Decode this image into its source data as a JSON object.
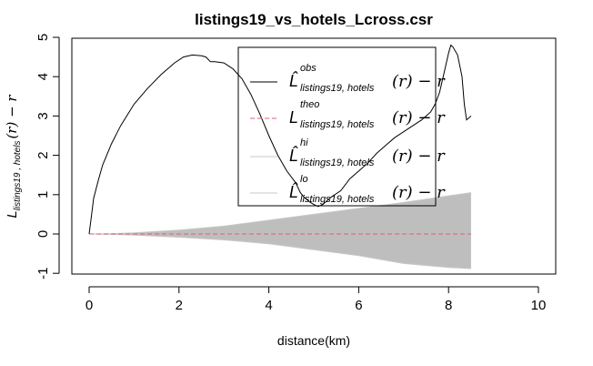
{
  "chart_data": {
    "type": "line",
    "title": "listings19_vs_hotels_Lcross.csr",
    "xlabel": "distance(km)",
    "ylabel": {
      "main": "L",
      "sub": "listings19 , hotels",
      "tail": "(r) − r"
    },
    "xlim": [
      0,
      10
    ],
    "ylim": [
      -1,
      5
    ],
    "xticks": [
      "0",
      "2",
      "4",
      "6",
      "8",
      "10"
    ],
    "yticks": [
      "-1",
      "0",
      "1",
      "2",
      "3",
      "4",
      "5"
    ],
    "grid": false,
    "legend_position": "top-center",
    "colors": {
      "obs": "#000000",
      "theo": "#e06070",
      "envelope": "#bebebe",
      "envelope_line": "#c8c8c8"
    },
    "legend": [
      {
        "main": "L̂",
        "sup": "obs",
        "sub": "listings19, hotels",
        "tail": "(r) − r",
        "style": "solid-black"
      },
      {
        "main": "L",
        "sup": "theo",
        "sub": "listings19, hotels",
        "tail": "(r) − r",
        "style": "dashed-red"
      },
      {
        "main": "L̂",
        "sup": "hi",
        "sub": "listings19, hotels",
        "tail": "(r) − r",
        "style": "solid-grey"
      },
      {
        "main": "L̂",
        "sup": "lo",
        "sub": "listings19, hotels",
        "tail": "(r) − r",
        "style": "solid-grey"
      }
    ],
    "series": [
      {
        "name": "obs",
        "x": [
          0,
          0.05,
          0.1,
          0.2,
          0.3,
          0.5,
          0.7,
          1.0,
          1.3,
          1.6,
          1.9,
          2.1,
          2.3,
          2.5,
          2.6,
          2.7,
          2.8,
          3.0,
          3.2,
          3.4,
          3.6,
          3.8,
          4.0,
          4.2,
          4.4,
          4.6,
          4.7,
          4.8,
          4.9,
          5.0,
          5.1,
          5.2,
          5.4,
          5.6,
          5.8,
          6.0,
          6.2,
          6.4,
          6.6,
          6.8,
          7.0,
          7.2,
          7.4,
          7.6,
          7.7,
          7.8,
          7.9,
          8.0,
          8.05,
          8.1,
          8.2,
          8.3,
          8.35,
          8.4,
          8.5
        ],
        "y": [
          0,
          0.45,
          0.9,
          1.35,
          1.75,
          2.3,
          2.75,
          3.3,
          3.7,
          4.05,
          4.35,
          4.5,
          4.55,
          4.53,
          4.5,
          4.38,
          4.38,
          4.35,
          4.2,
          3.95,
          3.55,
          3.05,
          2.5,
          2.0,
          1.6,
          1.3,
          1.05,
          0.92,
          0.82,
          0.75,
          0.7,
          0.75,
          0.95,
          1.1,
          1.4,
          1.6,
          1.8,
          2.05,
          2.25,
          2.45,
          2.6,
          2.75,
          2.9,
          3.1,
          3.3,
          3.6,
          4.1,
          4.6,
          4.8,
          4.75,
          4.55,
          4.0,
          3.3,
          2.9,
          3.0
        ]
      },
      {
        "name": "theo",
        "x": [
          0,
          8.5
        ],
        "y": [
          0,
          0
        ]
      },
      {
        "name": "hi",
        "x": [
          0,
          0.5,
          1,
          2,
          3,
          4,
          5,
          6,
          7,
          8,
          8.5
        ],
        "y": [
          0,
          0.01,
          0.03,
          0.1,
          0.2,
          0.35,
          0.5,
          0.65,
          0.8,
          0.97,
          1.05
        ]
      },
      {
        "name": "lo",
        "x": [
          0,
          0.5,
          1,
          2,
          3,
          4,
          5,
          6,
          7,
          8,
          8.5
        ],
        "y": [
          0,
          -0.01,
          -0.03,
          -0.08,
          -0.15,
          -0.25,
          -0.4,
          -0.55,
          -0.75,
          -0.85,
          -0.88
        ]
      }
    ]
  }
}
